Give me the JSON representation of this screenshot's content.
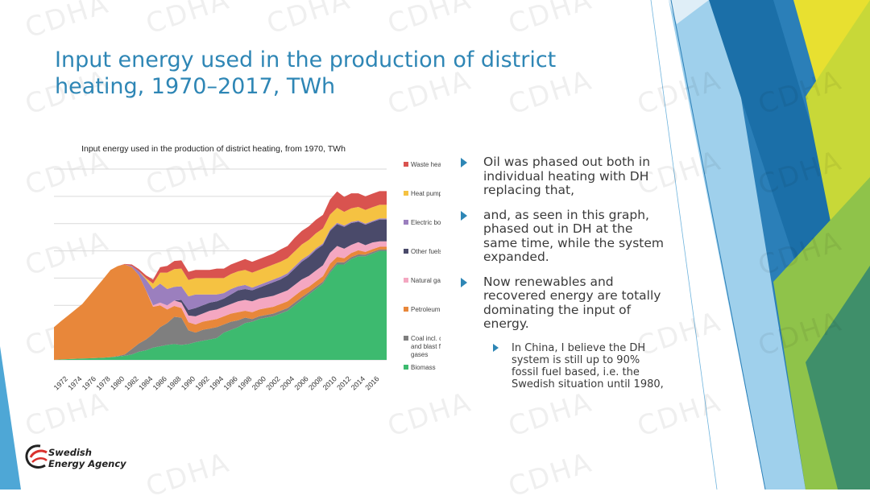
{
  "slide": {
    "title": "Input energy used in the production of district heating, 1970–2017, TWh",
    "bullets": [
      {
        "level": 1,
        "text": "Oil was phased out both in individual heating with DH replacing that,"
      },
      {
        "level": 1,
        "text": "and, as seen in this graph, phased out in DH at the same time, while the system expanded."
      },
      {
        "level": 1,
        "text": "Now renewables and recovered energy are totally dominating the input of energy."
      },
      {
        "level": 2,
        "text": "In China, I believe the DH system is still up to 90% fossil fuel based, i.e. the Swedish situation until 1980,"
      }
    ],
    "logo": {
      "line1": "Swedish",
      "line2": "Energy Agency"
    },
    "watermark": "CDHA",
    "accent_color": "#2e86b5"
  },
  "chart_data": {
    "type": "area",
    "stacked": true,
    "title": "Input energy used in the production of district heating, from 1970, TWh",
    "xlabel": "",
    "ylabel": "",
    "ylim": [
      0,
      70
    ],
    "grid": true,
    "legend_placement": "right",
    "tick_labels": [
      "1972",
      "1974",
      "1976",
      "1978",
      "1980",
      "1982",
      "1984",
      "1986",
      "1988",
      "1990",
      "1992",
      "1994",
      "1996",
      "1998",
      "2000",
      "2002",
      "2004",
      "2006",
      "2008",
      "2010",
      "2012",
      "2014",
      "2016"
    ],
    "x": [
      1970,
      1971,
      1972,
      1973,
      1974,
      1975,
      1976,
      1977,
      1978,
      1979,
      1980,
      1981,
      1982,
      1983,
      1984,
      1985,
      1986,
      1987,
      1988,
      1989,
      1990,
      1991,
      1992,
      1993,
      1994,
      1995,
      1996,
      1997,
      1998,
      1999,
      2000,
      2001,
      2002,
      2003,
      2004,
      2005,
      2006,
      2007,
      2008,
      2009,
      2010,
      2011,
      2012,
      2013,
      2014,
      2015,
      2016,
      2017
    ],
    "series": [
      {
        "name": "Biomass",
        "color": "#3dba6f",
        "values": [
          0,
          0.2,
          0.3,
          0.4,
          0.5,
          0.6,
          0.7,
          0.8,
          1,
          1.2,
          1.5,
          2,
          3,
          3.5,
          4.5,
          5,
          5.5,
          5.8,
          5.5,
          5.8,
          6.5,
          7,
          7.5,
          8,
          10,
          11,
          12,
          13.5,
          14,
          15,
          15.5,
          16,
          17,
          18,
          20,
          22,
          24,
          26,
          28,
          32,
          35,
          35,
          37,
          38,
          38,
          39,
          40,
          40
        ]
      },
      {
        "name": "Coal incl. coke and blast furnace gases",
        "color": "#7f7f7f",
        "values": [
          0,
          0,
          0,
          0,
          0,
          0,
          0,
          0,
          0,
          0.2,
          0.5,
          2,
          3,
          4,
          5,
          7,
          8,
          10,
          10,
          5,
          3.5,
          4,
          4,
          4,
          3,
          3,
          2.5,
          2,
          1,
          1,
          1,
          1,
          1,
          1,
          1,
          1,
          0.8,
          0.8,
          0.7,
          0.8,
          0.8,
          0.8,
          0.7,
          0.7,
          0.6,
          0.6,
          0.5,
          0.5
        ]
      },
      {
        "name": "Petroleum",
        "color": "#e8873a",
        "values": [
          12,
          14,
          16,
          18,
          20,
          23,
          26,
          29,
          32,
          33,
          33,
          30,
          25,
          18,
          10,
          8,
          5,
          4,
          3.5,
          3,
          3,
          3,
          3,
          3,
          3,
          3,
          3,
          2.5,
          2.5,
          2.5,
          2.5,
          2.5,
          2.5,
          2.5,
          2.5,
          2.5,
          2,
          2,
          2,
          2.5,
          2,
          1.5,
          1.5,
          1.5,
          1,
          1,
          1,
          1
        ]
      },
      {
        "name": "Natural gas",
        "color": "#f4a7c1",
        "values": [
          0,
          0,
          0,
          0,
          0,
          0,
          0,
          0,
          0,
          0,
          0,
          0,
          0,
          0,
          0.5,
          1,
          1.5,
          2,
          2,
          2.5,
          3,
          3,
          3.5,
          3.5,
          3.5,
          3.5,
          4,
          4,
          4,
          4,
          4,
          4,
          4,
          4,
          4,
          4,
          4,
          4,
          4,
          4,
          4,
          3.5,
          3,
          3,
          2.5,
          2.5,
          2,
          2
        ]
      },
      {
        "name": "Other fuels",
        "color": "#4a4a6a",
        "values": [
          0,
          0,
          0,
          0,
          0,
          0,
          0,
          0,
          0,
          0,
          0,
          0,
          0,
          0,
          0,
          0,
          0,
          0,
          1,
          2,
          3,
          3,
          3,
          3,
          3,
          3.5,
          4,
          4,
          4,
          4,
          4.5,
          5,
          5,
          5.5,
          6,
          6.5,
          7,
          7.5,
          7.5,
          8,
          8,
          8,
          8,
          7.5,
          7.5,
          7.5,
          8,
          8
        ]
      },
      {
        "name": "Electric boilers",
        "color": "#9b7fbe",
        "values": [
          0,
          0,
          0,
          0,
          0,
          0,
          0,
          0,
          0,
          0,
          0,
          0.5,
          1.5,
          4,
          6,
          7,
          6,
          5,
          5,
          5,
          5,
          4,
          3,
          2.5,
          2,
          2,
          1.5,
          1.5,
          1,
          1,
          1,
          1,
          1,
          0.8,
          0.8,
          0.8,
          0.7,
          0.6,
          0.5,
          0.5,
          0.5,
          0.5,
          0.4,
          0.4,
          0.4,
          0.4,
          0.4,
          0.4
        ]
      },
      {
        "name": "Heat pumps",
        "color": "#f5c242",
        "values": [
          0,
          0,
          0,
          0,
          0,
          0,
          0,
          0,
          0,
          0,
          0,
          0,
          0,
          0.5,
          2,
          4,
          6,
          6.5,
          6.5,
          6,
          6,
          6,
          6,
          6,
          5.5,
          5.5,
          5.5,
          5.5,
          5.5,
          5.5,
          5.5,
          5.5,
          5.5,
          5.5,
          5.5,
          5.5,
          5.5,
          5.5,
          5.5,
          5.5,
          5.5,
          5,
          5,
          5,
          5,
          5,
          5,
          5
        ]
      },
      {
        "name": "Waste heat",
        "color": "#d9534f",
        "values": [
          0,
          0,
          0,
          0,
          0,
          0,
          0,
          0,
          0,
          0,
          0.2,
          0.5,
          0.8,
          1,
          1.5,
          2,
          2.5,
          3,
          3,
          3,
          3,
          3,
          3,
          3.5,
          3.5,
          3.5,
          3.5,
          4,
          4,
          4,
          4,
          4,
          4.5,
          4.5,
          5,
          5,
          5,
          5,
          5,
          5.5,
          6,
          5.5,
          5.5,
          5,
          5,
          5,
          5,
          5
        ]
      }
    ]
  }
}
